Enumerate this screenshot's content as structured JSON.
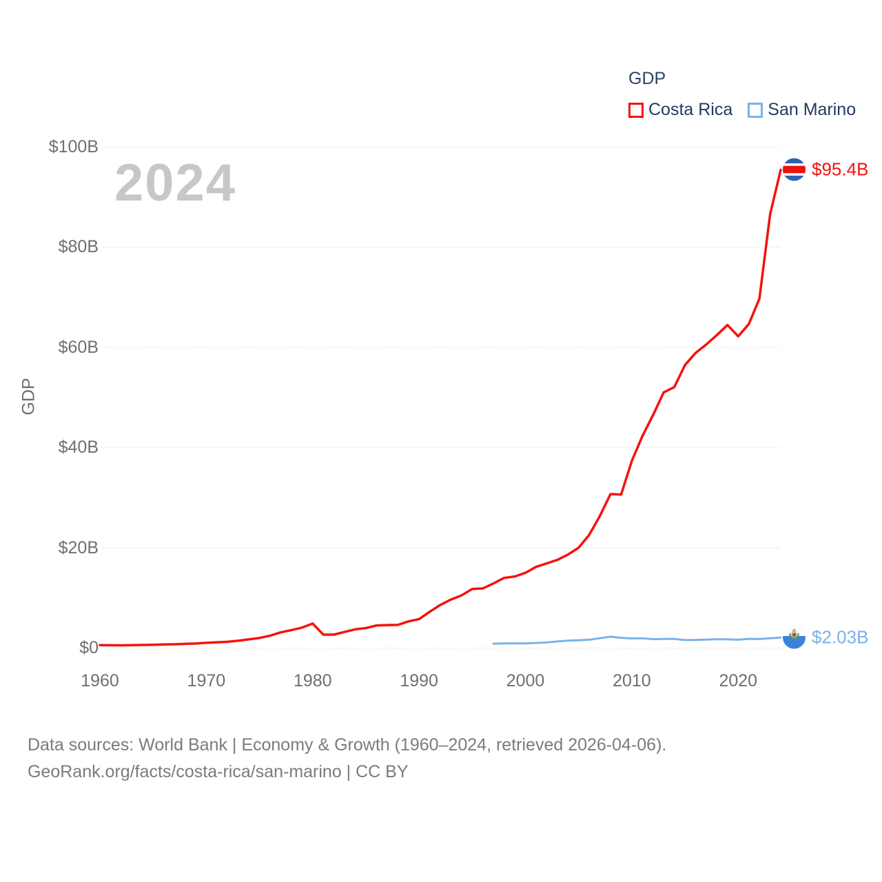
{
  "watermark": "2024",
  "legend": {
    "title": "GDP",
    "items": [
      {
        "label": "Costa Rica",
        "color": "#f5120b"
      },
      {
        "label": "San Marino",
        "color": "#79b2ea"
      }
    ]
  },
  "y_axis": {
    "title": "GDP",
    "ticks": [
      {
        "value": 0,
        "label": "$0"
      },
      {
        "value": 20,
        "label": "$20B"
      },
      {
        "value": 40,
        "label": "$40B"
      },
      {
        "value": 60,
        "label": "$60B"
      },
      {
        "value": 80,
        "label": "$80B"
      },
      {
        "value": 100,
        "label": "$100B"
      }
    ]
  },
  "x_axis": {
    "ticks": [
      {
        "value": 1960,
        "label": "1960"
      },
      {
        "value": 1970,
        "label": "1970"
      },
      {
        "value": 1980,
        "label": "1980"
      },
      {
        "value": 1990,
        "label": "1990"
      },
      {
        "value": 2000,
        "label": "2000"
      },
      {
        "value": 2010,
        "label": "2010"
      },
      {
        "value": 2020,
        "label": "2020"
      }
    ]
  },
  "footer": {
    "line1": "Data sources: World Bank | Economy & Growth (1960–2024, retrieved 2026-04-06).",
    "line2": "GeoRank.org/facts/costa-rica/san-marino | CC BY"
  },
  "chart_data": {
    "type": "line",
    "title": "GDP",
    "xlabel": "",
    "ylabel": "GDP",
    "x_range": [
      1960,
      2024
    ],
    "ylim": [
      0,
      100
    ],
    "grid": true,
    "legend_position": "top-right",
    "series": [
      {
        "name": "Costa Rica",
        "color": "#f5120b",
        "x_start": 1960,
        "end_label": "$95.4B",
        "values": [
          0.51,
          0.49,
          0.48,
          0.52,
          0.55,
          0.59,
          0.64,
          0.69,
          0.77,
          0.84,
          0.98,
          1.08,
          1.18,
          1.39,
          1.67,
          1.96,
          2.41,
          3.07,
          3.52,
          4.02,
          4.83,
          2.62,
          2.61,
          3.15,
          3.67,
          3.92,
          4.44,
          4.53,
          4.55,
          5.26,
          5.71,
          7.16,
          8.54,
          9.62,
          10.46,
          11.72,
          11.85,
          12.83,
          13.94,
          14.22,
          14.95,
          16.14,
          16.84,
          17.52,
          18.6,
          19.96,
          22.53,
          26.32,
          30.67,
          30.56,
          37.27,
          42.25,
          46.47,
          50.97,
          52.02,
          56.44,
          58.85,
          60.52,
          62.42,
          64.42,
          62.16,
          64.61,
          69.67,
          86.5,
          95.4
        ]
      },
      {
        "name": "San Marino",
        "color": "#79b2ea",
        "x_start": 1997,
        "end_label": "$2.03B",
        "values": [
          0.8,
          0.86,
          0.88,
          0.86,
          0.95,
          1.05,
          1.25,
          1.42,
          1.5,
          1.6,
          1.9,
          2.2,
          1.98,
          1.86,
          1.9,
          1.7,
          1.75,
          1.75,
          1.52,
          1.56,
          1.62,
          1.7,
          1.66,
          1.6,
          1.78,
          1.73,
          1.9,
          2.03
        ]
      }
    ]
  }
}
